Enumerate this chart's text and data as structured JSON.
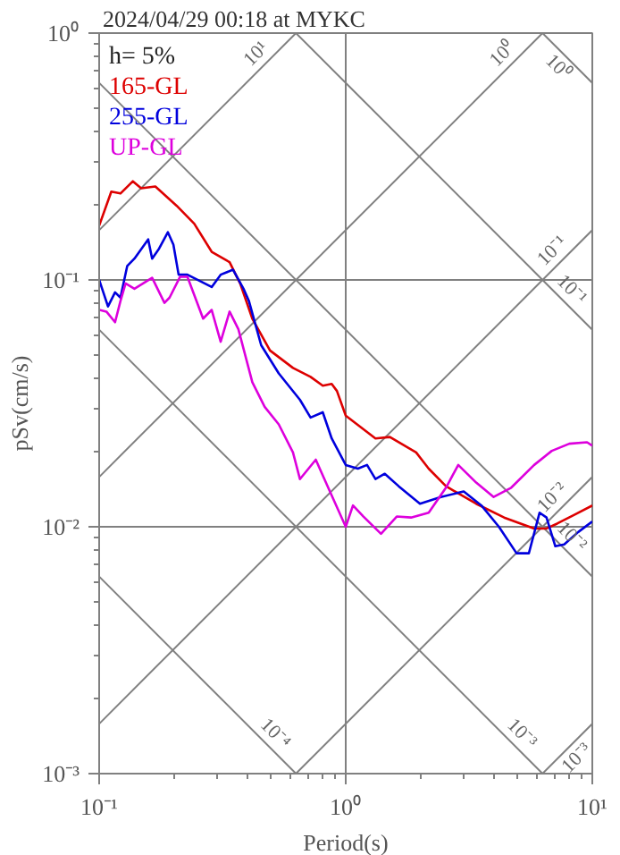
{
  "chart_data": {
    "type": "line",
    "title": "2024/04/29 00:18 at MYKC",
    "xlabel": "Period(s)",
    "ylabel": "pSv(cm/s)",
    "xlim": [
      0.1,
      10
    ],
    "ylim": [
      0.001,
      1
    ],
    "log": "xy",
    "grid": true,
    "legend": "top left",
    "xticks": [
      {
        "value": 0.1,
        "label": "10⁻¹"
      },
      {
        "value": 0.2,
        "label": null
      },
      {
        "value": 0.3,
        "label": null
      },
      {
        "value": 0.4,
        "label": null
      },
      {
        "value": 0.5,
        "label": null
      },
      {
        "value": 0.6,
        "label": null
      },
      {
        "value": 0.7,
        "label": null
      },
      {
        "value": 0.8,
        "label": null
      },
      {
        "value": 0.9,
        "label": null
      },
      {
        "value": 1,
        "label": "10⁰"
      },
      {
        "value": 2,
        "label": null
      },
      {
        "value": 3,
        "label": null
      },
      {
        "value": 4,
        "label": null
      },
      {
        "value": 5,
        "label": null
      },
      {
        "value": 6,
        "label": null
      },
      {
        "value": 7,
        "label": null
      },
      {
        "value": 8,
        "label": null
      },
      {
        "value": 9,
        "label": null
      },
      {
        "value": 10,
        "label": "10¹"
      }
    ],
    "yticks": [
      {
        "value": 0.001,
        "label": "10⁻³"
      },
      {
        "value": 0.002,
        "label": null
      },
      {
        "value": 0.003,
        "label": null
      },
      {
        "value": 0.004,
        "label": null
      },
      {
        "value": 0.005,
        "label": null
      },
      {
        "value": 0.006,
        "label": null
      },
      {
        "value": 0.007,
        "label": null
      },
      {
        "value": 0.008,
        "label": null
      },
      {
        "value": 0.009,
        "label": null
      },
      {
        "value": 0.01,
        "label": "10⁻²"
      },
      {
        "value": 0.02,
        "label": null
      },
      {
        "value": 0.03,
        "label": null
      },
      {
        "value": 0.04,
        "label": null
      },
      {
        "value": 0.05,
        "label": null
      },
      {
        "value": 0.06,
        "label": null
      },
      {
        "value": 0.07,
        "label": null
      },
      {
        "value": 0.08,
        "label": null
      },
      {
        "value": 0.09,
        "label": null
      },
      {
        "value": 0.1,
        "label": "10⁻¹"
      },
      {
        "value": 0.2,
        "label": null
      },
      {
        "value": 0.3,
        "label": null
      },
      {
        "value": 0.4,
        "label": null
      },
      {
        "value": 0.5,
        "label": null
      },
      {
        "value": 0.6,
        "label": null
      },
      {
        "value": 0.7,
        "label": null
      },
      {
        "value": 0.8,
        "label": null
      },
      {
        "value": 0.9,
        "label": null
      },
      {
        "value": 1,
        "label": "10⁰"
      }
    ],
    "annotations": [
      "h= 5%",
      {
        "text": "10¹",
        "x": 0.62832,
        "y": 1
      },
      {
        "text": "10⁰",
        "x": 6.2832,
        "y": 1
      },
      {
        "text": "10⁻¹",
        "x": 10,
        "y": 0.15915
      },
      {
        "text": "10⁻²",
        "x": 10,
        "y": 0.015915
      },
      {
        "text": "10⁻³",
        "x": 10,
        "y": 0.0015915
      },
      {
        "text": "10⁰",
        "x": 10,
        "y": 0.62832
      },
      {
        "text": "10⁻¹",
        "x": 10,
        "y": 0.062832
      },
      {
        "text": "10⁻²",
        "x": 10,
        "y": 0.0062832
      },
      {
        "text": "10⁻³",
        "x": 6.2832,
        "y": 0.001
      },
      {
        "text": "10⁻⁴",
        "x": 0.62832,
        "y": 0.001
      }
    ],
    "series": [
      {
        "color": "#808080",
        "x": [
          0.1,
          0.62832
        ],
        "values": [
          0.15915,
          1
        ]
      },
      {
        "color": "#808080",
        "x": [
          0.1,
          6.2832
        ],
        "values": [
          0.015915,
          1
        ]
      },
      {
        "color": "#808080",
        "x": [
          0.1,
          10
        ],
        "values": [
          0.0015915,
          0.15915
        ]
      },
      {
        "color": "#808080",
        "x": [
          0.62832,
          10
        ],
        "values": [
          0.001,
          0.015915
        ]
      },
      {
        "color": "#808080",
        "x": [
          6.2832,
          10
        ],
        "values": [
          0.001,
          0.0015915
        ]
      },
      {
        "color": "#808080",
        "x": [
          6.2832,
          10
        ],
        "values": [
          1,
          0.62832
        ]
      },
      {
        "color": "#808080",
        "x": [
          0.62832,
          10
        ],
        "values": [
          1,
          0.062832
        ]
      },
      {
        "color": "#808080",
        "x": [
          0.1,
          10
        ],
        "values": [
          0.62832,
          0.0062832
        ]
      },
      {
        "color": "#808080",
        "x": [
          0.1,
          6.2832
        ],
        "values": [
          0.062832,
          0.001
        ]
      },
      {
        "color": "#808080",
        "x": [
          0.1,
          0.62832
        ],
        "values": [
          0.0062832,
          0.001
        ]
      },
      {
        "name": "165-GL",
        "color": "#dd0000",
        "x": [
          0.1,
          0.112,
          0.122,
          0.137,
          0.148,
          0.169,
          0.206,
          0.243,
          0.286,
          0.338,
          0.373,
          0.418,
          0.493,
          0.611,
          0.72,
          0.807,
          0.877,
          0.921,
          1.0,
          1.32,
          1.51,
          1.93,
          2.17,
          2.55,
          3.38,
          4.39,
          5.81,
          6.52,
          7.2,
          8.49,
          10
        ],
        "values": [
          0.166,
          0.228,
          0.224,
          0.251,
          0.235,
          0.239,
          0.2,
          0.169,
          0.13,
          0.118,
          0.0968,
          0.0697,
          0.0518,
          0.044,
          0.0405,
          0.0373,
          0.0379,
          0.0355,
          0.0282,
          0.0228,
          0.0231,
          0.02,
          0.0172,
          0.0146,
          0.0124,
          0.0109,
          0.00984,
          0.00984,
          0.0103,
          0.0112,
          0.0122
        ]
      },
      {
        "name": "255-GL",
        "color": "#0000dd",
        "x": [
          0.1,
          0.1086,
          0.116,
          0.122,
          0.13,
          0.139,
          0.158,
          0.164,
          0.175,
          0.19,
          0.2,
          0.21,
          0.228,
          0.286,
          0.311,
          0.349,
          0.385,
          0.405,
          0.454,
          0.535,
          0.652,
          0.72,
          0.807,
          0.877,
          1.0,
          1.12,
          1.22,
          1.32,
          1.44,
          1.64,
          2.0,
          2.43,
          3.01,
          3.55,
          4.18,
          4.93,
          5.53,
          6.11,
          6.52,
          7.08,
          7.69,
          8.77,
          10
        ],
        "values": [
          0.1,
          0.0781,
          0.0891,
          0.0848,
          0.114,
          0.122,
          0.146,
          0.122,
          0.134,
          0.156,
          0.139,
          0.105,
          0.105,
          0.0936,
          0.105,
          0.11,
          0.0921,
          0.0821,
          0.0544,
          0.0418,
          0.0327,
          0.0277,
          0.0291,
          0.0228,
          0.0178,
          0.0172,
          0.0178,
          0.0156,
          0.0164,
          0.0146,
          0.0124,
          0.0132,
          0.0139,
          0.0122,
          0.01,
          0.00781,
          0.00781,
          0.0114,
          0.0109,
          0.00834,
          0.00848,
          0.00952,
          0.0105
        ]
      },
      {
        "name": "UP-GL",
        "color": "#dd00dd",
        "x": [
          0.1,
          0.107,
          0.116,
          0.122,
          0.128,
          0.139,
          0.164,
          0.184,
          0.193,
          0.213,
          0.228,
          0.264,
          0.286,
          0.311,
          0.338,
          0.367,
          0.418,
          0.469,
          0.535,
          0.611,
          0.652,
          0.756,
          0.849,
          1.0,
          1.07,
          1.18,
          1.39,
          1.61,
          1.84,
          2.17,
          2.55,
          2.86,
          3.38,
          3.98,
          4.69,
          5.81,
          6.85,
          8.07,
          9.52,
          10
        ],
        "values": [
          0.0756,
          0.0744,
          0.0674,
          0.0821,
          0.0968,
          0.0921,
          0.102,
          0.0808,
          0.0848,
          0.103,
          0.103,
          0.0697,
          0.0756,
          0.0562,
          0.0744,
          0.0631,
          0.0385,
          0.0306,
          0.026,
          0.02,
          0.0156,
          0.0187,
          0.0144,
          0.01,
          0.0122,
          0.011,
          0.00936,
          0.011,
          0.0109,
          0.0114,
          0.0144,
          0.0178,
          0.0151,
          0.0132,
          0.0144,
          0.0178,
          0.0203,
          0.0217,
          0.022,
          0.0213
        ]
      }
    ]
  }
}
